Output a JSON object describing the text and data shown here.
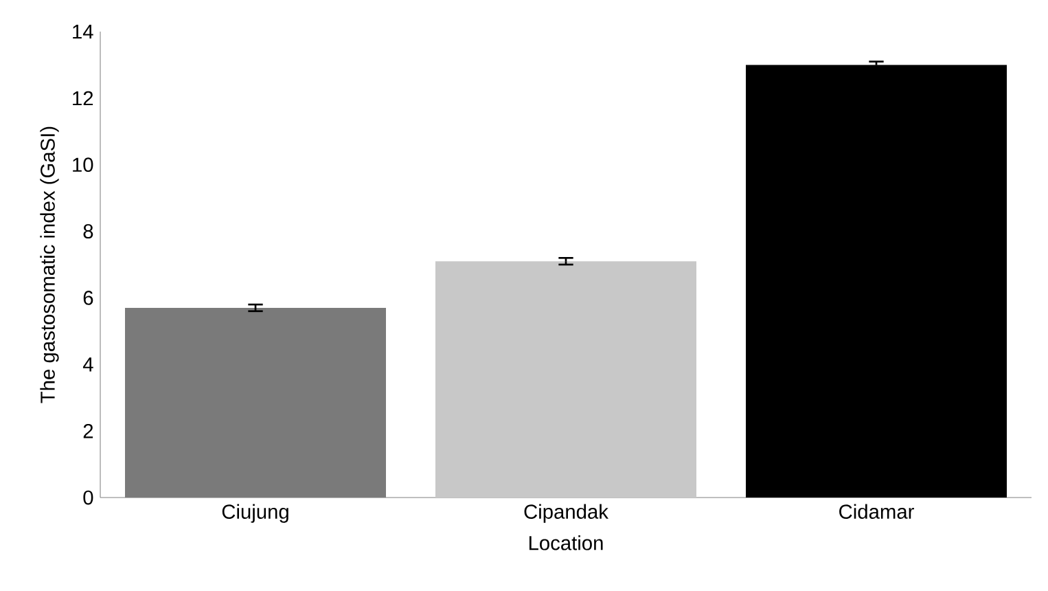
{
  "chart_data": {
    "type": "bar",
    "xlabel": "Location",
    "ylabel": "The gastosomatic index (GaSI)",
    "categories": [
      "Ciujung",
      "Cipandak",
      "Cidamar"
    ],
    "values": [
      5.7,
      7.1,
      13.0
    ],
    "errors": [
      0.1,
      0.1,
      0.1
    ],
    "colors": [
      "#7a7a7a",
      "#c8c8c8",
      "#000000"
    ],
    "ylim": [
      0,
      14
    ],
    "yticks": [
      0,
      2,
      4,
      6,
      8,
      10,
      12,
      14
    ],
    "grid": false
  }
}
